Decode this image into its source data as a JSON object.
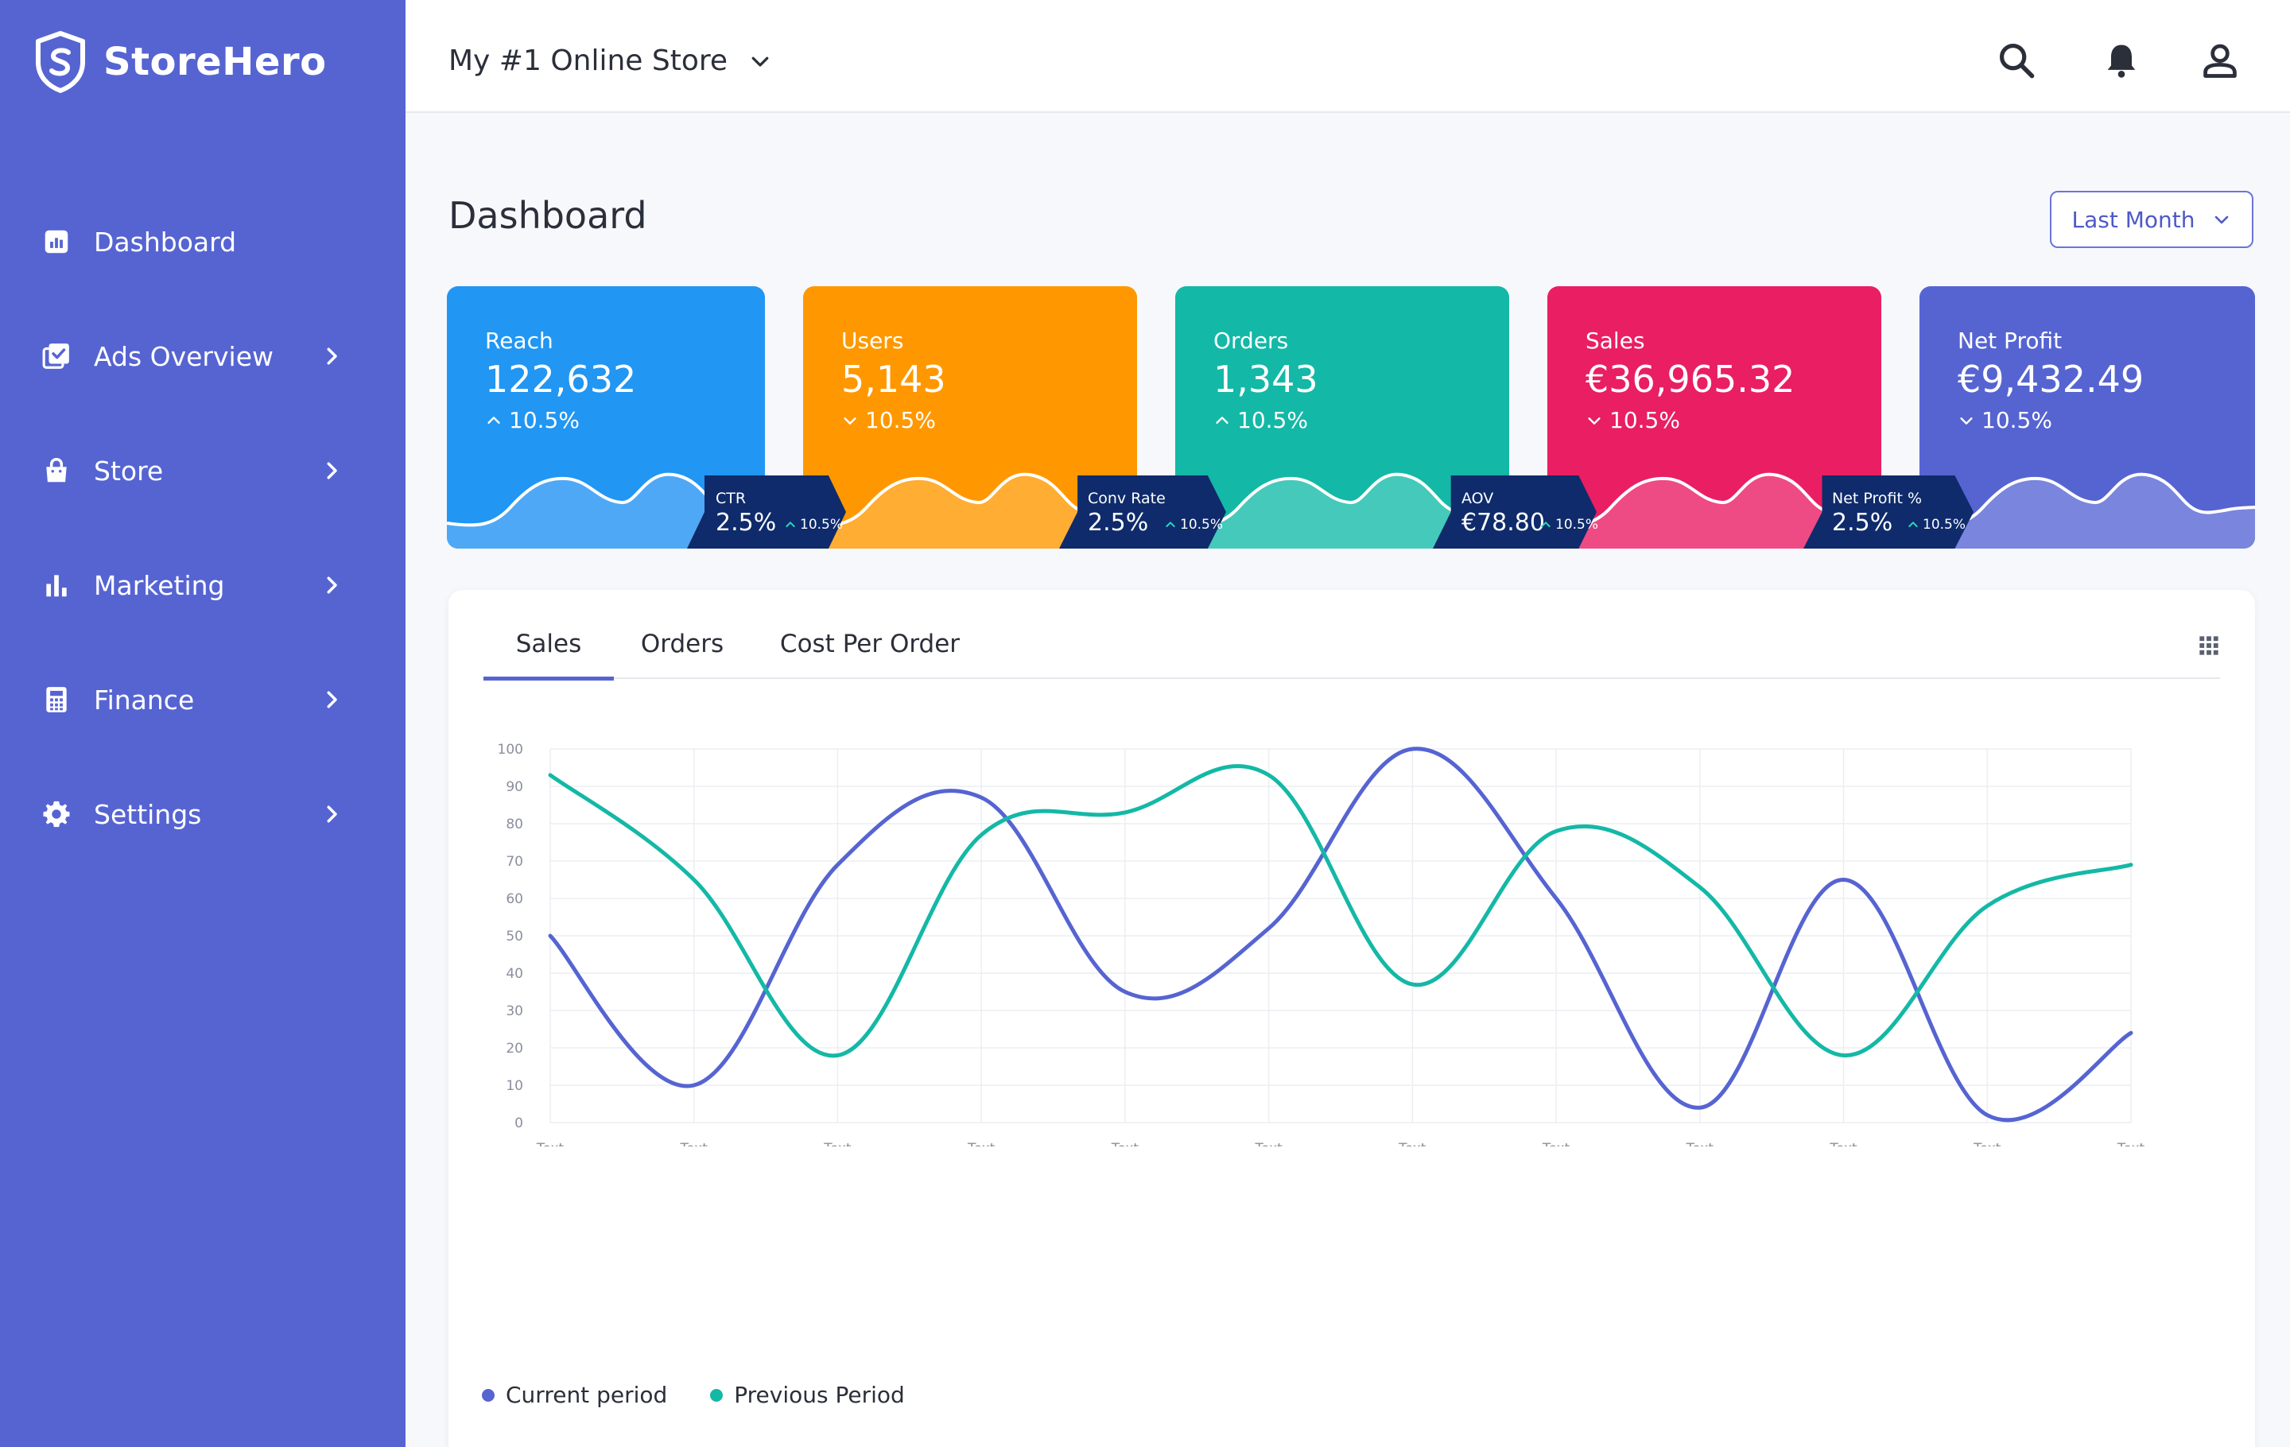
{
  "brand": {
    "name": "StoreHero"
  },
  "sidebar": {
    "items": [
      {
        "label": "Dashboard",
        "icon": "dashboard-icon",
        "has_chevron": false
      },
      {
        "label": "Ads Overview",
        "icon": "ads-icon",
        "has_chevron": true
      },
      {
        "label": "Store",
        "icon": "store-bag-icon",
        "has_chevron": true
      },
      {
        "label": "Marketing",
        "icon": "bar-chart-icon",
        "has_chevron": true
      },
      {
        "label": "Finance",
        "icon": "calculator-icon",
        "has_chevron": true
      },
      {
        "label": "Settings",
        "icon": "gear-icon",
        "has_chevron": true
      }
    ]
  },
  "topbar": {
    "store_name": "My #1 Online Store",
    "icons": [
      "search-icon",
      "bell-icon",
      "user-icon"
    ]
  },
  "page": {
    "title": "Dashboard",
    "period": "Last Month"
  },
  "kpis": [
    {
      "label": "Reach",
      "value": "122,632",
      "change": "10.5%",
      "direction": "up",
      "color": "#2196f3",
      "wave": "#4fa8f5"
    },
    {
      "label": "Users",
      "value": "5,143",
      "change": "10.5%",
      "direction": "down",
      "color": "#ff9800",
      "wave": "#ffad33"
    },
    {
      "label": "Orders",
      "value": "1,343",
      "change": "10.5%",
      "direction": "up",
      "color": "#14b8a6",
      "wave": "#45c9bb"
    },
    {
      "label": "Sales",
      "value": "€36,965.32",
      "change": "10.5%",
      "direction": "down",
      "color": "#e91e63",
      "wave": "#ee4b85"
    },
    {
      "label": "Net Profit",
      "value": "€9,432.49",
      "change": "10.5%",
      "direction": "down",
      "color": "#5664d2",
      "wave": "#7a85dd"
    }
  ],
  "ribbons": [
    {
      "label": "CTR",
      "value": "2.5%",
      "change": "10.5%"
    },
    {
      "label": "Conv Rate",
      "value": "2.5%",
      "change": "10.5%"
    },
    {
      "label": "AOV",
      "value": "€78.80",
      "change": "10.5%"
    },
    {
      "label": "Net Profit %",
      "value": "2.5%",
      "change": "10.5%"
    }
  ],
  "tabs": [
    "Sales",
    "Orders",
    "Cost Per Order"
  ],
  "active_tab": "Sales",
  "chart_data": {
    "type": "line",
    "categories": [
      "Text",
      "Text",
      "Text",
      "Text",
      "Text",
      "Text",
      "Text",
      "Text",
      "Text",
      "Text",
      "Text",
      "Text"
    ],
    "series": [
      {
        "name": "Current period",
        "color": "#5664d2",
        "values": [
          50,
          10,
          69,
          87,
          35,
          52,
          100,
          60,
          4,
          65,
          2,
          24
        ]
      },
      {
        "name": "Previous Period",
        "color": "#14b8a6",
        "values": [
          93,
          65,
          18,
          77,
          83,
          93,
          37,
          78,
          63,
          18,
          58,
          69
        ]
      }
    ],
    "ylim": [
      0,
      100
    ],
    "yticks": [
      0,
      10,
      20,
      30,
      40,
      50,
      60,
      70,
      80,
      90,
      100
    ],
    "grid": true,
    "legend": "bottom-left"
  }
}
